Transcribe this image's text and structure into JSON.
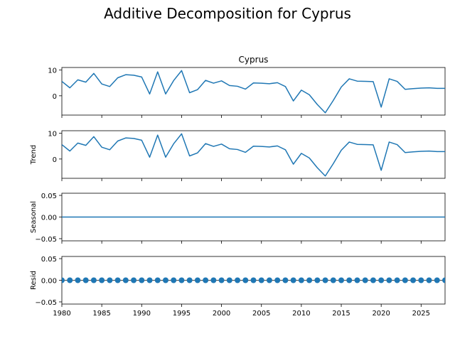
{
  "figure_title": "Additive Decomposition for Cyprus",
  "chart_data": [
    {
      "type": "line",
      "title": "Cyprus",
      "ylabel": "",
      "xlim": [
        1980,
        2028
      ],
      "ylim": [
        -7.5,
        11
      ],
      "yticks": [
        "0",
        "10"
      ],
      "color": "#1f77b4",
      "x": [
        1980,
        1981,
        1982,
        1983,
        1984,
        1985,
        1986,
        1987,
        1988,
        1989,
        1990,
        1991,
        1992,
        1993,
        1994,
        1995,
        1996,
        1997,
        1998,
        1999,
        2000,
        2001,
        2002,
        2003,
        2004,
        2005,
        2006,
        2007,
        2008,
        2009,
        2010,
        2011,
        2012,
        2013,
        2014,
        2015,
        2016,
        2017,
        2018,
        2019,
        2020,
        2021,
        2022,
        2023,
        2024,
        2025,
        2026,
        2027,
        2028
      ],
      "values": [
        5.6,
        3.1,
        6.2,
        5.3,
        8.7,
        4.6,
        3.6,
        7.0,
        8.2,
        8.0,
        7.3,
        0.7,
        9.3,
        0.7,
        5.9,
        9.8,
        1.2,
        2.4,
        6.0,
        4.9,
        5.8,
        4.0,
        3.7,
        2.6,
        5.0,
        4.9,
        4.7,
        5.1,
        3.6,
        -2.0,
        2.2,
        0.4,
        -3.4,
        -6.6,
        -1.8,
        3.4,
        6.6,
        5.7,
        5.6,
        5.5,
        -4.4,
        6.6,
        5.6,
        2.5,
        2.8,
        3.0,
        3.1,
        2.9,
        2.9
      ]
    },
    {
      "type": "line",
      "title": "",
      "ylabel": "Trend",
      "xlim": [
        1980,
        2028
      ],
      "ylim": [
        -7.5,
        11
      ],
      "yticks": [
        "0",
        "10"
      ],
      "color": "#1f77b4",
      "x": [
        1980,
        1981,
        1982,
        1983,
        1984,
        1985,
        1986,
        1987,
        1988,
        1989,
        1990,
        1991,
        1992,
        1993,
        1994,
        1995,
        1996,
        1997,
        1998,
        1999,
        2000,
        2001,
        2002,
        2003,
        2004,
        2005,
        2006,
        2007,
        2008,
        2009,
        2010,
        2011,
        2012,
        2013,
        2014,
        2015,
        2016,
        2017,
        2018,
        2019,
        2020,
        2021,
        2022,
        2023,
        2024,
        2025,
        2026,
        2027,
        2028
      ],
      "values": [
        5.6,
        3.1,
        6.2,
        5.3,
        8.7,
        4.6,
        3.6,
        7.0,
        8.2,
        8.0,
        7.3,
        0.7,
        9.3,
        0.7,
        5.9,
        9.8,
        1.2,
        2.4,
        6.0,
        4.9,
        5.8,
        4.0,
        3.7,
        2.6,
        5.0,
        4.9,
        4.7,
        5.1,
        3.6,
        -2.0,
        2.2,
        0.4,
        -3.4,
        -6.6,
        -1.8,
        3.4,
        6.6,
        5.7,
        5.6,
        5.5,
        -4.4,
        6.6,
        5.6,
        2.5,
        2.8,
        3.0,
        3.1,
        2.9,
        2.9
      ]
    },
    {
      "type": "line",
      "title": "",
      "ylabel": "Seasonal",
      "xlim": [
        1980,
        2028
      ],
      "ylim": [
        -0.055,
        0.055
      ],
      "yticks": [
        "−0.05",
        "0.00",
        "0.05"
      ],
      "color": "#1f77b4",
      "x": [
        1980,
        2028
      ],
      "values": [
        0.0,
        0.0
      ]
    },
    {
      "type": "scatter",
      "title": "",
      "ylabel": "Resid",
      "xlim": [
        1980,
        2028
      ],
      "ylim": [
        -0.055,
        0.055
      ],
      "yticks": [
        "−0.05",
        "0.00",
        "0.05"
      ],
      "xticks": [
        "1980",
        "1985",
        "1990",
        "1995",
        "2000",
        "2005",
        "2010",
        "2015",
        "2020",
        "2025"
      ],
      "color": "#1f77b4",
      "x": [
        1980,
        1981,
        1982,
        1983,
        1984,
        1985,
        1986,
        1987,
        1988,
        1989,
        1990,
        1991,
        1992,
        1993,
        1994,
        1995,
        1996,
        1997,
        1998,
        1999,
        2000,
        2001,
        2002,
        2003,
        2004,
        2005,
        2006,
        2007,
        2008,
        2009,
        2010,
        2011,
        2012,
        2013,
        2014,
        2015,
        2016,
        2017,
        2018,
        2019,
        2020,
        2021,
        2022,
        2023,
        2024,
        2025,
        2026,
        2027,
        2028
      ],
      "values": [
        0,
        0,
        0,
        0,
        0,
        0,
        0,
        0,
        0,
        0,
        0,
        0,
        0,
        0,
        0,
        0,
        0,
        0,
        0,
        0,
        0,
        0,
        0,
        0,
        0,
        0,
        0,
        0,
        0,
        0,
        0,
        0,
        0,
        0,
        0,
        0,
        0,
        0,
        0,
        0,
        0,
        0,
        0,
        0,
        0,
        0,
        0,
        0,
        0
      ]
    }
  ]
}
